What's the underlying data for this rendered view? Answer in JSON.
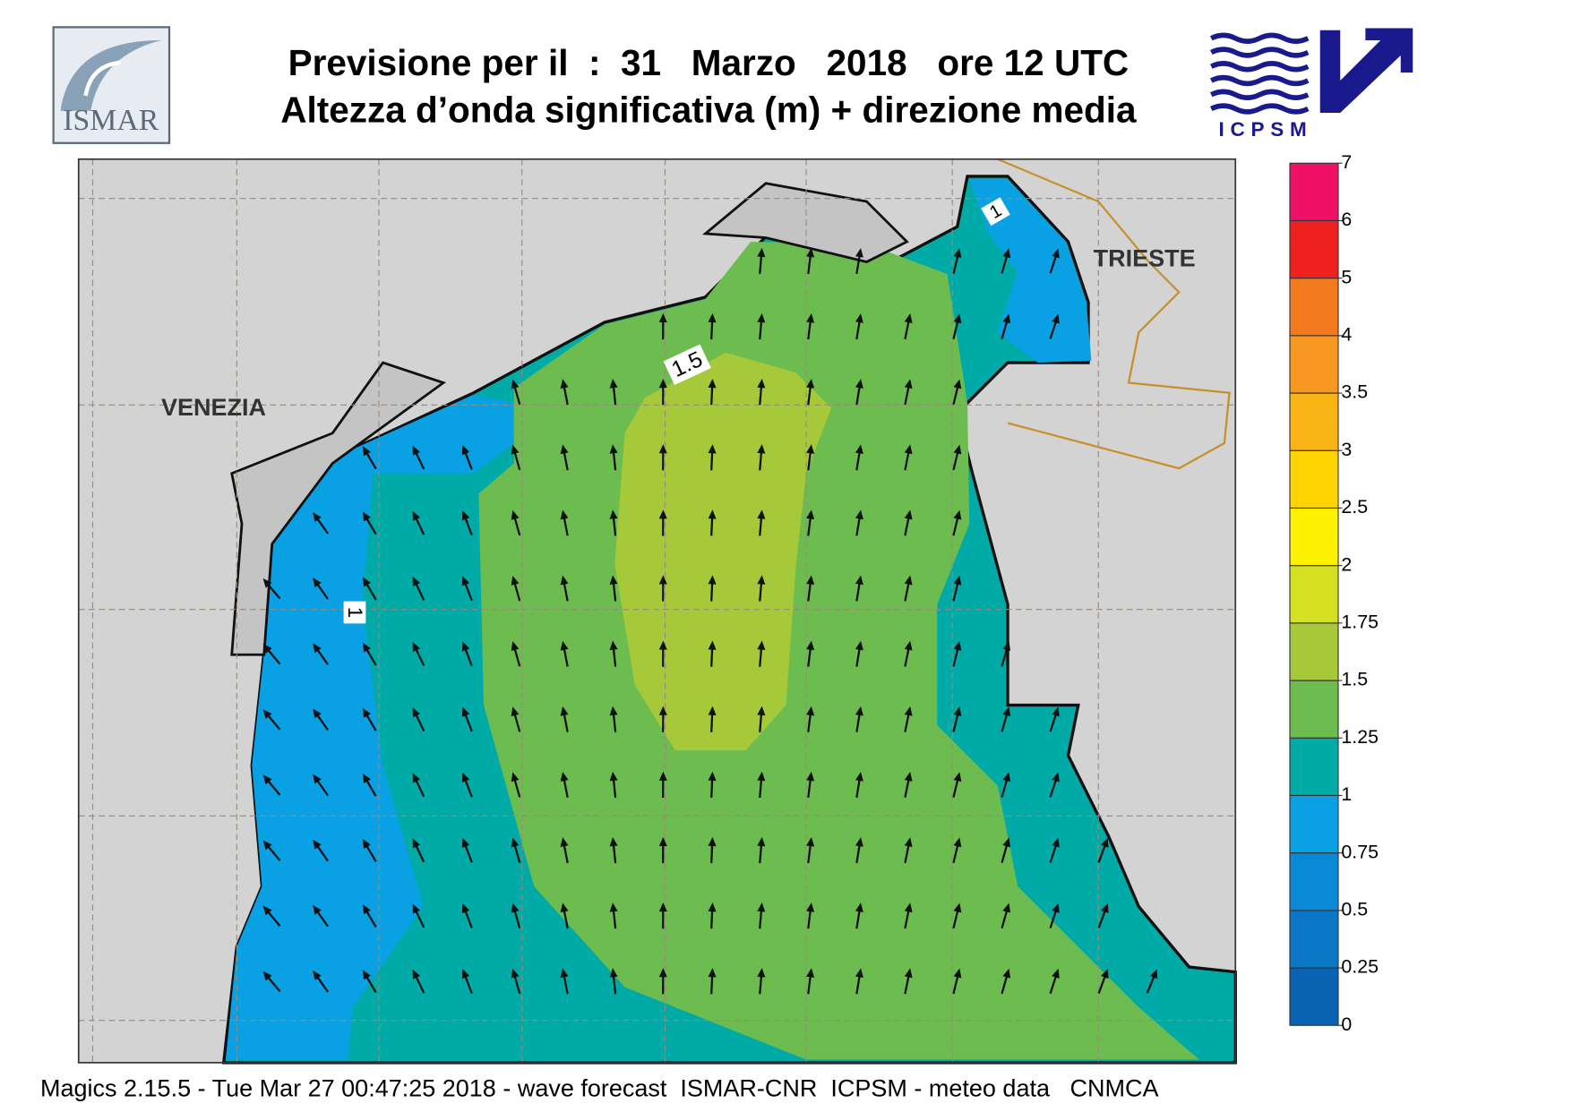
{
  "header": {
    "title": "Previsione per il  :  31   Marzo   2018   ore 12 UTC",
    "subtitle": "Altezza d’onda significativa (m) + direzione media"
  },
  "logos": {
    "left": "ISMAR",
    "right": "ICPSM"
  },
  "map": {
    "places": [
      "VENEZIA",
      "TRIESTE"
    ],
    "contour_labels": [
      "1.5",
      "1",
      "1"
    ]
  },
  "colorbar": {
    "ticks": [
      0,
      0.25,
      0.5,
      0.75,
      1,
      1.25,
      1.5,
      1.75,
      2,
      2.5,
      3,
      3.5,
      4,
      5,
      6,
      7
    ],
    "colors": [
      "#0a62b2",
      "#0a76c6",
      "#0a8ad6",
      "#0aa0e4",
      "#00aaa6",
      "#6cbc50",
      "#a6c93a",
      "#d4e020",
      "#fff200",
      "#ffd400",
      "#fbb416",
      "#f89820",
      "#f47a20",
      "#ee2020",
      "#ee1166"
    ]
  },
  "footer": "Magics 2.15.5 - Tue Mar 27 00:47:25 2018 - wave forecast  ISMAR-CNR  ICPSM - meteo data   CNMCA"
}
